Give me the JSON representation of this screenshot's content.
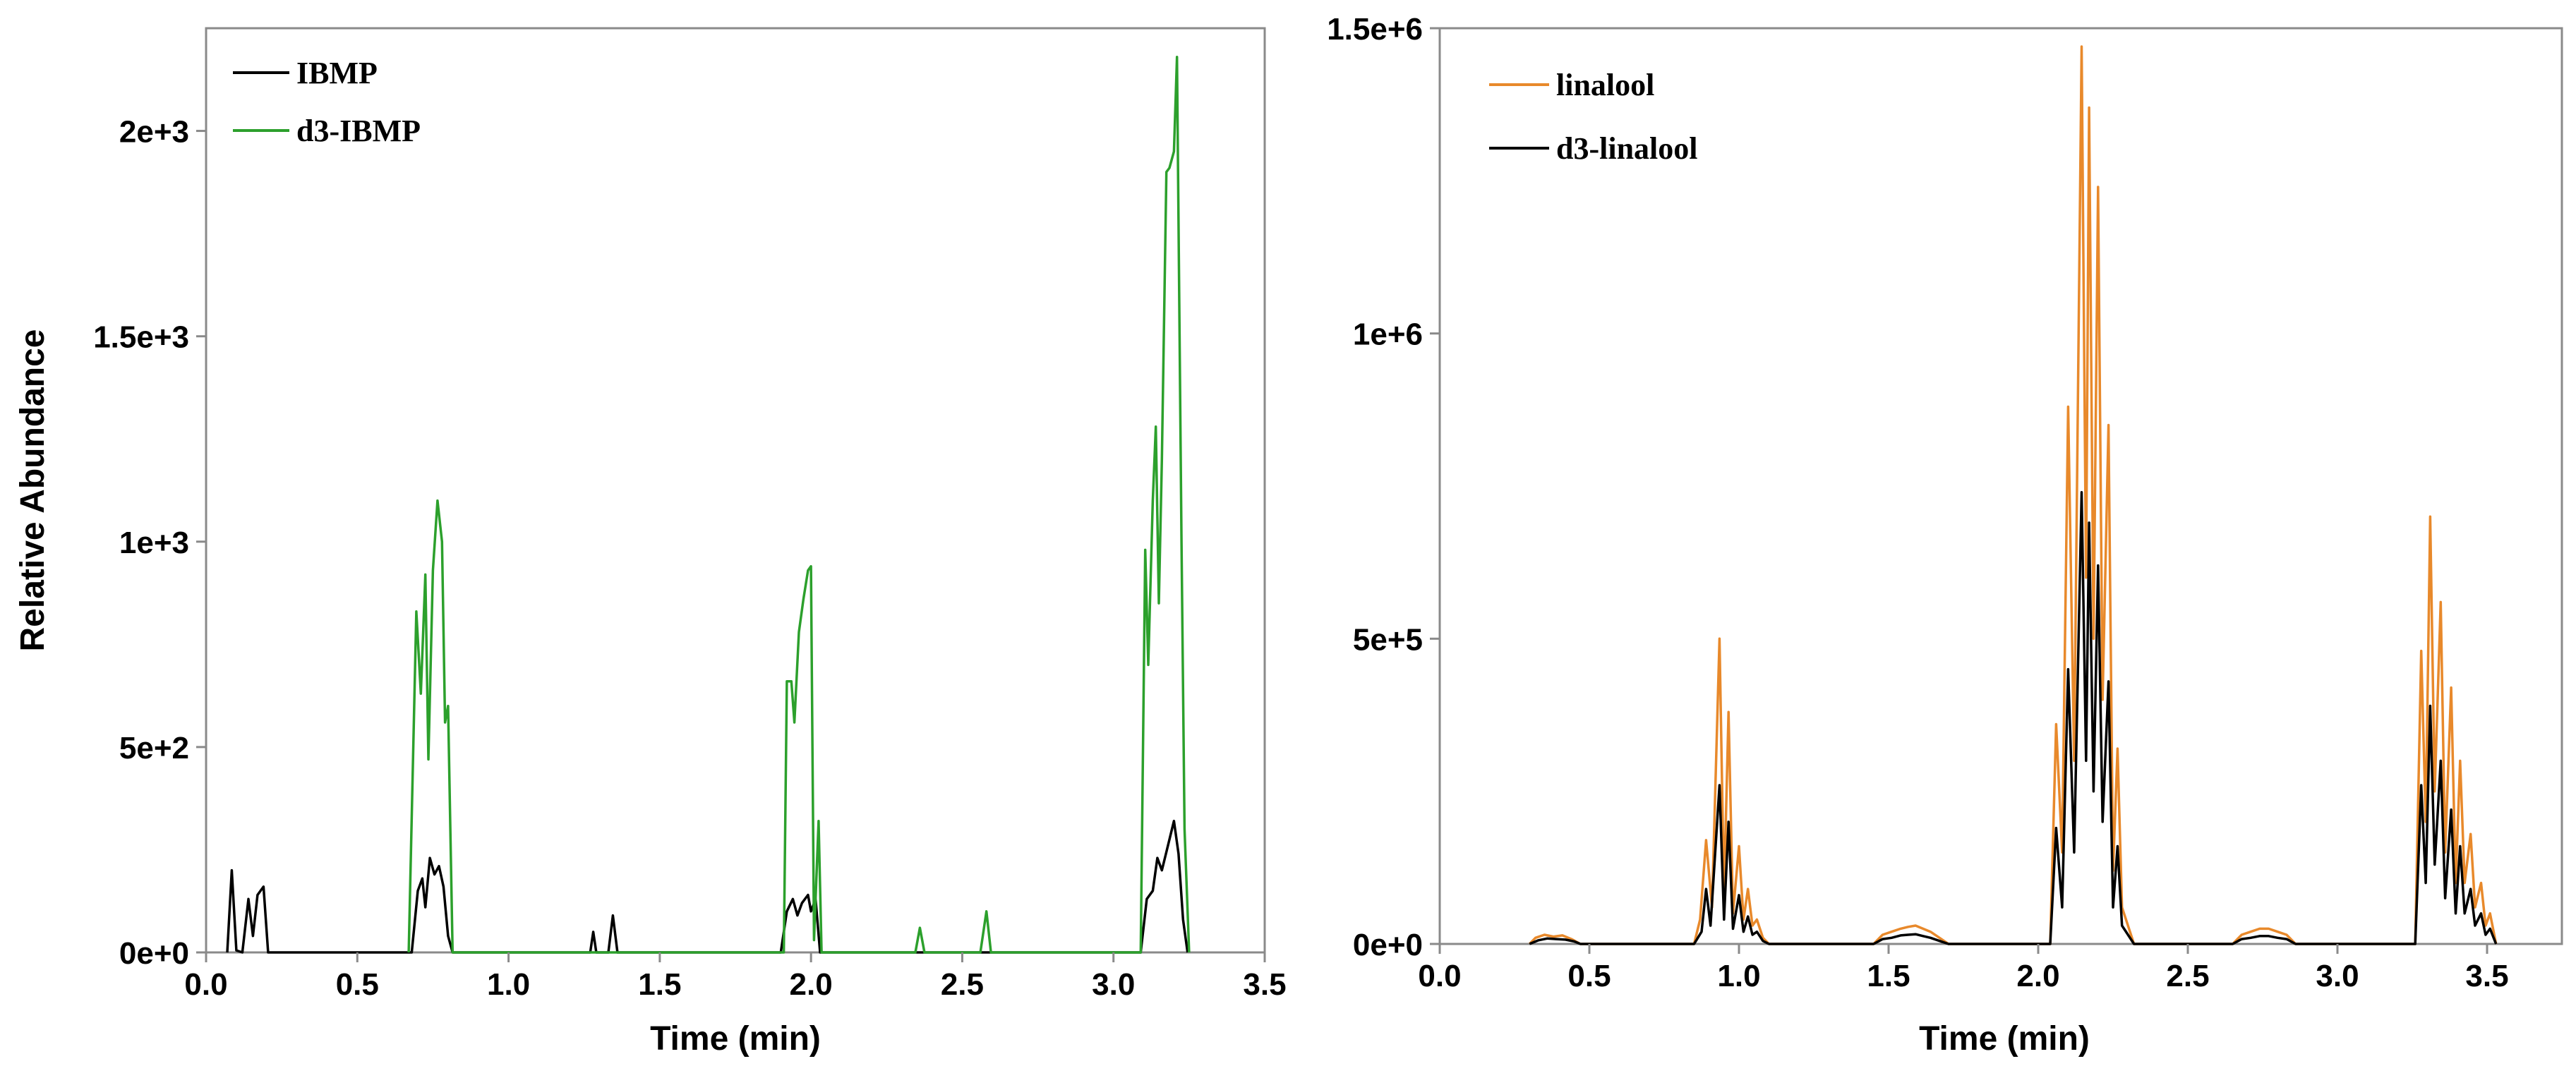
{
  "chart_data": [
    {
      "type": "line",
      "xlabel": "Time (min)",
      "ylabel": "Relative Abundance",
      "xlim": [
        0,
        3.5
      ],
      "ylim": [
        0,
        2250
      ],
      "x_ticks": [
        "0.0",
        "0.5",
        "1.0",
        "1.5",
        "2.0",
        "2.5",
        "3.0",
        "3.5"
      ],
      "y_ticks": [
        "0e+0",
        "5e+2",
        "1e+3",
        "1.5e+3",
        "2e+3"
      ],
      "y_tick_values": [
        0,
        500,
        1000,
        1500,
        2000
      ],
      "grid": false,
      "legend_position": "top-left",
      "series": [
        {
          "name": "IBMP",
          "color": "#000000",
          "points": [
            [
              0.07,
              0
            ],
            [
              0.085,
              200
            ],
            [
              0.1,
              5
            ],
            [
              0.12,
              0
            ],
            [
              0.14,
              130
            ],
            [
              0.155,
              40
            ],
            [
              0.17,
              140
            ],
            [
              0.19,
              160
            ],
            [
              0.205,
              0
            ],
            [
              0.68,
              0
            ],
            [
              0.7,
              150
            ],
            [
              0.715,
              180
            ],
            [
              0.725,
              110
            ],
            [
              0.74,
              230
            ],
            [
              0.755,
              190
            ],
            [
              0.77,
              210
            ],
            [
              0.785,
              160
            ],
            [
              0.8,
              40
            ],
            [
              0.815,
              0
            ],
            [
              1.27,
              0
            ],
            [
              1.28,
              50
            ],
            [
              1.29,
              0
            ],
            [
              1.33,
              0
            ],
            [
              1.345,
              90
            ],
            [
              1.36,
              0
            ],
            [
              1.9,
              0
            ],
            [
              1.92,
              100
            ],
            [
              1.94,
              130
            ],
            [
              1.955,
              90
            ],
            [
              1.97,
              120
            ],
            [
              1.99,
              140
            ],
            [
              2.0,
              100
            ],
            [
              2.015,
              130
            ],
            [
              2.03,
              0
            ],
            [
              3.09,
              0
            ],
            [
              3.11,
              130
            ],
            [
              3.13,
              150
            ],
            [
              3.145,
              230
            ],
            [
              3.16,
              200
            ],
            [
              3.18,
              260
            ],
            [
              3.2,
              320
            ],
            [
              3.215,
              240
            ],
            [
              3.23,
              80
            ],
            [
              3.245,
              0
            ]
          ]
        },
        {
          "name": "d3-IBMP",
          "color": "#2ca02c",
          "points": [
            [
              0.67,
              0
            ],
            [
              0.695,
              830
            ],
            [
              0.71,
              630
            ],
            [
              0.725,
              920
            ],
            [
              0.735,
              470
            ],
            [
              0.75,
              930
            ],
            [
              0.765,
              1100
            ],
            [
              0.78,
              1000
            ],
            [
              0.79,
              560
            ],
            [
              0.8,
              600
            ],
            [
              0.815,
              0
            ],
            [
              1.91,
              0
            ],
            [
              1.92,
              660
            ],
            [
              1.935,
              660
            ],
            [
              1.945,
              560
            ],
            [
              1.96,
              780
            ],
            [
              1.975,
              860
            ],
            [
              1.99,
              930
            ],
            [
              2.0,
              940
            ],
            [
              2.01,
              30
            ],
            [
              2.025,
              320
            ],
            [
              2.035,
              0
            ],
            [
              2.345,
              0
            ],
            [
              2.36,
              60
            ],
            [
              2.375,
              0
            ],
            [
              2.56,
              0
            ],
            [
              2.58,
              100
            ],
            [
              2.595,
              0
            ],
            [
              3.09,
              0
            ],
            [
              3.105,
              980
            ],
            [
              3.115,
              700
            ],
            [
              3.13,
              1100
            ],
            [
              3.14,
              1280
            ],
            [
              3.15,
              850
            ],
            [
              3.16,
              1200
            ],
            [
              3.175,
              1900
            ],
            [
              3.185,
              1910
            ],
            [
              3.2,
              1950
            ],
            [
              3.21,
              2180
            ],
            [
              3.225,
              1000
            ],
            [
              3.235,
              300
            ],
            [
              3.25,
              0
            ]
          ]
        }
      ]
    },
    {
      "type": "line",
      "xlabel": "Time (min)",
      "ylabel": "",
      "xlim": [
        0,
        3.75
      ],
      "ylim": [
        0,
        1500000
      ],
      "x_ticks": [
        "0.0",
        "0.5",
        "1.0",
        "1.5",
        "2.0",
        "2.5",
        "3.0",
        "3.5"
      ],
      "y_ticks": [
        "0e+0",
        "5e+5",
        "1e+6",
        "1.5e+6"
      ],
      "y_tick_values": [
        0,
        500000,
        1000000,
        1500000
      ],
      "grid": false,
      "legend_position": "top-left",
      "series": [
        {
          "name": "linalool",
          "color": "#e8892b",
          "points": [
            [
              0.3,
              0
            ],
            [
              0.32,
              10000
            ],
            [
              0.35,
              15000
            ],
            [
              0.38,
              12000
            ],
            [
              0.41,
              14000
            ],
            [
              0.44,
              8000
            ],
            [
              0.47,
              0
            ],
            [
              0.85,
              0
            ],
            [
              0.87,
              40000
            ],
            [
              0.89,
              170000
            ],
            [
              0.91,
              60000
            ],
            [
              0.935,
              500000
            ],
            [
              0.95,
              80000
            ],
            [
              0.965,
              380000
            ],
            [
              0.98,
              50000
            ],
            [
              1.0,
              160000
            ],
            [
              1.015,
              40000
            ],
            [
              1.03,
              90000
            ],
            [
              1.045,
              30000
            ],
            [
              1.06,
              40000
            ],
            [
              1.08,
              10000
            ],
            [
              1.1,
              0
            ],
            [
              1.45,
              0
            ],
            [
              1.48,
              15000
            ],
            [
              1.51,
              20000
            ],
            [
              1.54,
              25000
            ],
            [
              1.565,
              28000
            ],
            [
              1.59,
              30000
            ],
            [
              1.615,
              25000
            ],
            [
              1.64,
              20000
            ],
            [
              1.67,
              10000
            ],
            [
              1.7,
              0
            ],
            [
              2.04,
              0
            ],
            [
              2.06,
              360000
            ],
            [
              2.08,
              150000
            ],
            [
              2.1,
              880000
            ],
            [
              2.12,
              300000
            ],
            [
              2.145,
              1470000
            ],
            [
              2.16,
              600000
            ],
            [
              2.17,
              1370000
            ],
            [
              2.185,
              500000
            ],
            [
              2.2,
              1240000
            ],
            [
              2.215,
              400000
            ],
            [
              2.235,
              850000
            ],
            [
              2.25,
              120000
            ],
            [
              2.265,
              320000
            ],
            [
              2.28,
              60000
            ],
            [
              2.3,
              30000
            ],
            [
              2.32,
              0
            ],
            [
              2.65,
              0
            ],
            [
              2.68,
              15000
            ],
            [
              2.71,
              20000
            ],
            [
              2.74,
              25000
            ],
            [
              2.77,
              25000
            ],
            [
              2.8,
              20000
            ],
            [
              2.83,
              15000
            ],
            [
              2.86,
              0
            ],
            [
              3.26,
              0
            ],
            [
              3.28,
              480000
            ],
            [
              3.295,
              200000
            ],
            [
              3.31,
              700000
            ],
            [
              3.325,
              250000
            ],
            [
              3.345,
              560000
            ],
            [
              3.36,
              150000
            ],
            [
              3.38,
              420000
            ],
            [
              3.395,
              100000
            ],
            [
              3.41,
              300000
            ],
            [
              3.425,
              100000
            ],
            [
              3.445,
              180000
            ],
            [
              3.46,
              60000
            ],
            [
              3.48,
              100000
            ],
            [
              3.495,
              30000
            ],
            [
              3.51,
              50000
            ],
            [
              3.53,
              0
            ]
          ]
        },
        {
          "name": "d3-linalool",
          "color": "#000000",
          "points": [
            [
              0.3,
              0
            ],
            [
              0.33,
              6000
            ],
            [
              0.36,
              9000
            ],
            [
              0.39,
              8000
            ],
            [
              0.42,
              7000
            ],
            [
              0.45,
              4000
            ],
            [
              0.47,
              0
            ],
            [
              0.85,
              0
            ],
            [
              0.875,
              20000
            ],
            [
              0.89,
              90000
            ],
            [
              0.905,
              30000
            ],
            [
              0.935,
              260000
            ],
            [
              0.95,
              40000
            ],
            [
              0.965,
              200000
            ],
            [
              0.98,
              25000
            ],
            [
              1.0,
              80000
            ],
            [
              1.015,
              20000
            ],
            [
              1.03,
              45000
            ],
            [
              1.045,
              15000
            ],
            [
              1.06,
              20000
            ],
            [
              1.08,
              5000
            ],
            [
              1.1,
              0
            ],
            [
              1.45,
              0
            ],
            [
              1.48,
              8000
            ],
            [
              1.51,
              10000
            ],
            [
              1.54,
              14000
            ],
            [
              1.565,
              15000
            ],
            [
              1.59,
              16000
            ],
            [
              1.615,
              13000
            ],
            [
              1.64,
              10000
            ],
            [
              1.67,
              5000
            ],
            [
              1.7,
              0
            ],
            [
              2.04,
              0
            ],
            [
              2.06,
              190000
            ],
            [
              2.08,
              60000
            ],
            [
              2.1,
              450000
            ],
            [
              2.12,
              150000
            ],
            [
              2.145,
              740000
            ],
            [
              2.16,
              300000
            ],
            [
              2.17,
              690000
            ],
            [
              2.185,
              250000
            ],
            [
              2.2,
              620000
            ],
            [
              2.215,
              200000
            ],
            [
              2.235,
              430000
            ],
            [
              2.25,
              60000
            ],
            [
              2.265,
              160000
            ],
            [
              2.28,
              30000
            ],
            [
              2.3,
              15000
            ],
            [
              2.32,
              0
            ],
            [
              2.65,
              0
            ],
            [
              2.68,
              8000
            ],
            [
              2.71,
              10000
            ],
            [
              2.74,
              13000
            ],
            [
              2.77,
              13000
            ],
            [
              2.8,
              10000
            ],
            [
              2.83,
              8000
            ],
            [
              2.86,
              0
            ],
            [
              3.26,
              0
            ],
            [
              3.28,
              260000
            ],
            [
              3.295,
              100000
            ],
            [
              3.31,
              390000
            ],
            [
              3.325,
              130000
            ],
            [
              3.345,
              300000
            ],
            [
              3.36,
              75000
            ],
            [
              3.38,
              220000
            ],
            [
              3.395,
              50000
            ],
            [
              3.41,
              160000
            ],
            [
              3.425,
              50000
            ],
            [
              3.445,
              90000
            ],
            [
              3.46,
              30000
            ],
            [
              3.48,
              50000
            ],
            [
              3.495,
              15000
            ],
            [
              3.51,
              25000
            ],
            [
              3.53,
              0
            ]
          ]
        }
      ]
    }
  ]
}
